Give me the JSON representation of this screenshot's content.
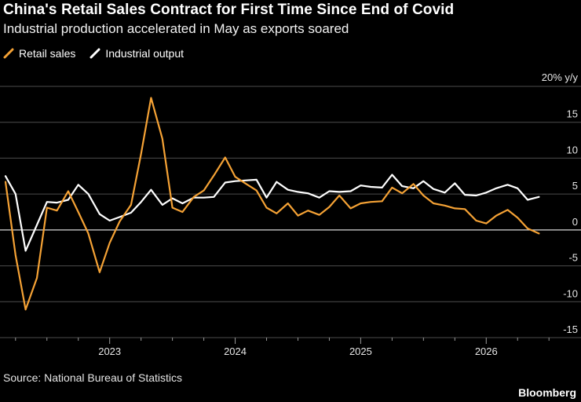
{
  "header": {
    "title": "China's Retail Sales Contract for First Time Since End of Covid",
    "subtitle": "Industrial production accelerated in May as exports soared"
  },
  "footer": {
    "source": "Source: National Bureau of Statistics",
    "brand": "Bloomberg"
  },
  "colors": {
    "background": "#000000",
    "retail": "#f5a235",
    "industrial": "#ffffff",
    "grid": "#4d4d4d"
  },
  "chart_data": {
    "type": "line",
    "title": "China's Retail Sales Contract for First Time Since End of Covid",
    "subtitle": "Industrial production accelerated in May as exports soared",
    "ylabel": "20% y/y",
    "ylim": [
      -15,
      20
    ],
    "yticks": [
      15,
      10,
      5,
      0,
      -5,
      -10,
      -15
    ],
    "xlim": [
      2022.17,
      2026.58
    ],
    "xticks": [
      {
        "value": 2023.0,
        "label": "2023"
      },
      {
        "value": 2024.0,
        "label": "2024"
      },
      {
        "value": 2025.0,
        "label": "2025"
      },
      {
        "value": 2026.0,
        "label": "2026"
      }
    ],
    "legend_position": "top-left",
    "grid": true,
    "series": [
      {
        "name": "Retail sales",
        "color": "#f5a235",
        "x": [
          2022.17,
          2022.25,
          2022.33,
          2022.42,
          2022.5,
          2022.58,
          2022.67,
          2022.75,
          2022.83,
          2022.92,
          2023.0,
          2023.08,
          2023.17,
          2023.25,
          2023.33,
          2023.42,
          2023.5,
          2023.58,
          2023.67,
          2023.75,
          2023.83,
          2023.92,
          2024.0,
          2024.08,
          2024.17,
          2024.25,
          2024.33,
          2024.42,
          2024.5,
          2024.58,
          2024.67,
          2024.75,
          2024.83,
          2024.92,
          2025.0,
          2025.08,
          2025.17,
          2025.25,
          2025.33,
          2025.42,
          2025.5,
          2025.58,
          2025.67,
          2025.75,
          2025.83,
          2025.92,
          2026.0,
          2026.08,
          2026.17,
          2026.25,
          2026.33,
          2026.42,
          2026.5
        ],
        "y": [
          6.7,
          -3.5,
          -11.1,
          -6.7,
          3.1,
          2.7,
          5.4,
          2.5,
          -0.5,
          -5.9,
          -1.8,
          1.2,
          3.5,
          10.6,
          18.4,
          12.7,
          3.1,
          2.5,
          4.6,
          5.5,
          7.6,
          10.1,
          7.4,
          6.5,
          5.5,
          3.1,
          2.3,
          3.7,
          2.0,
          2.7,
          2.1,
          3.2,
          4.8,
          3.0,
          3.7,
          3.9,
          4.0,
          5.9,
          5.1,
          6.4,
          4.8,
          3.7,
          3.4,
          3.0,
          2.9,
          1.3,
          0.9,
          2.0,
          2.8,
          1.7,
          0.2,
          -0.5,
          null
        ]
      },
      {
        "name": "Industrial output",
        "color": "#ffffff",
        "x": [
          2022.17,
          2022.25,
          2022.33,
          2022.42,
          2022.5,
          2022.58,
          2022.67,
          2022.75,
          2022.83,
          2022.92,
          2023.0,
          2023.08,
          2023.17,
          2023.25,
          2023.33,
          2023.42,
          2023.5,
          2023.58,
          2023.67,
          2023.75,
          2023.83,
          2023.92,
          2024.0,
          2024.08,
          2024.17,
          2024.25,
          2024.33,
          2024.42,
          2024.5,
          2024.58,
          2024.67,
          2024.75,
          2024.83,
          2024.92,
          2025.0,
          2025.08,
          2025.17,
          2025.25,
          2025.33,
          2025.42,
          2025.5,
          2025.58,
          2025.67,
          2025.75,
          2025.83,
          2025.92,
          2026.0,
          2026.08,
          2026.17,
          2026.25,
          2026.33,
          2026.42,
          2026.5
        ],
        "y": [
          7.5,
          5.0,
          -2.9,
          0.7,
          3.9,
          3.8,
          4.2,
          6.3,
          5.0,
          2.2,
          1.3,
          1.8,
          2.4,
          3.9,
          5.6,
          3.5,
          4.4,
          3.7,
          4.5,
          4.5,
          4.6,
          6.6,
          6.8,
          6.9,
          7.0,
          4.5,
          6.7,
          5.6,
          5.3,
          5.1,
          4.5,
          5.4,
          5.3,
          5.4,
          6.2,
          6.0,
          5.9,
          7.7,
          6.1,
          5.8,
          6.8,
          5.7,
          5.2,
          6.5,
          4.9,
          4.8,
          5.2,
          5.8,
          6.3,
          5.8,
          4.2,
          4.6,
          null
        ]
      }
    ]
  }
}
